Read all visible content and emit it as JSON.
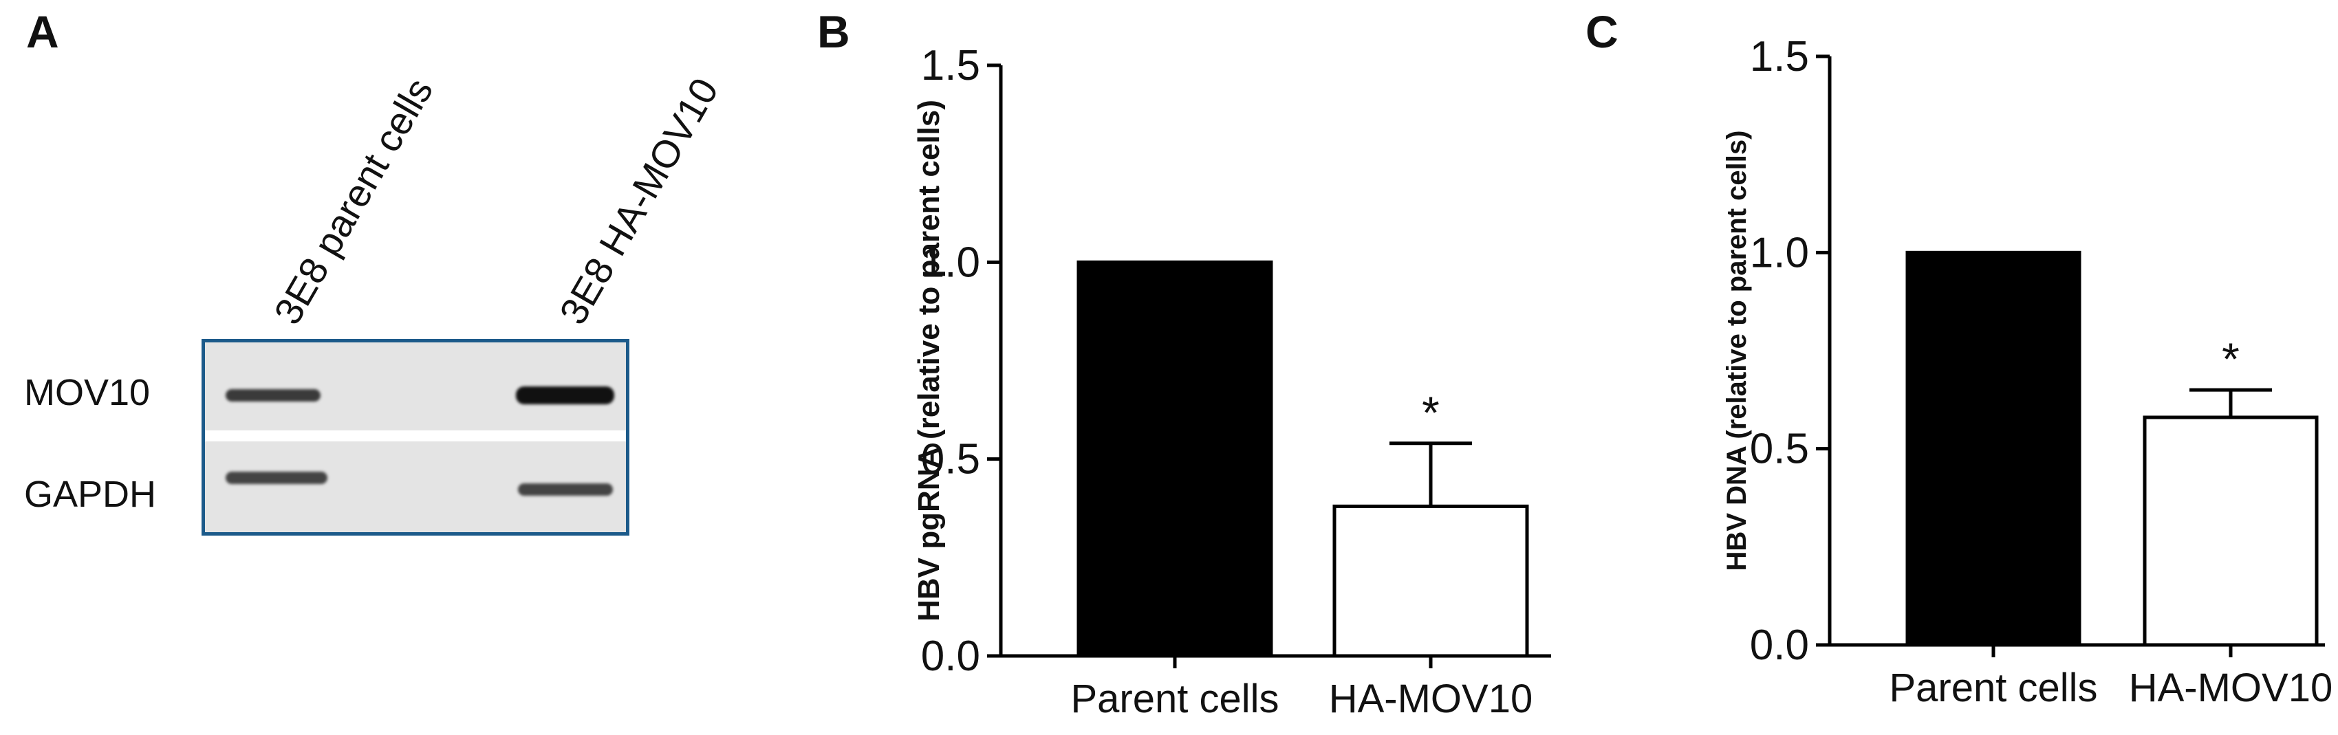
{
  "panel_a": {
    "letter": "A",
    "lanes": [
      "3E8 parent cells",
      "3E8 HA-MOV10"
    ],
    "rows": [
      "MOV10",
      "GAPDH"
    ]
  },
  "chart_data": [
    {
      "panel": "B",
      "type": "bar",
      "categories": [
        "Parent cells",
        "HA-MOV10"
      ],
      "values": [
        1.0,
        0.38
      ],
      "error_upper": [
        0,
        0.16
      ],
      "significance": [
        "",
        "*"
      ],
      "bar_colors": [
        "#000000",
        "#ffffff"
      ],
      "ylabel": "HBV pgRNA (relative to parent cells)",
      "ylim": [
        0,
        1.5
      ],
      "yticks": [
        "0.0",
        "0.5",
        "1.0",
        "1.5"
      ],
      "grid": false
    },
    {
      "panel": "C",
      "type": "bar",
      "categories": [
        "Parent cells",
        "HA-MOV10"
      ],
      "values": [
        1.0,
        0.58
      ],
      "error_upper": [
        0,
        0.07
      ],
      "significance": [
        "",
        "*"
      ],
      "bar_colors": [
        "#000000",
        "#ffffff"
      ],
      "ylabel": "HBV DNA (relative to parent cells)",
      "ylim": [
        0,
        1.5
      ],
      "yticks": [
        "0.0",
        "0.5",
        "1.0",
        "1.5"
      ],
      "grid": false
    }
  ]
}
